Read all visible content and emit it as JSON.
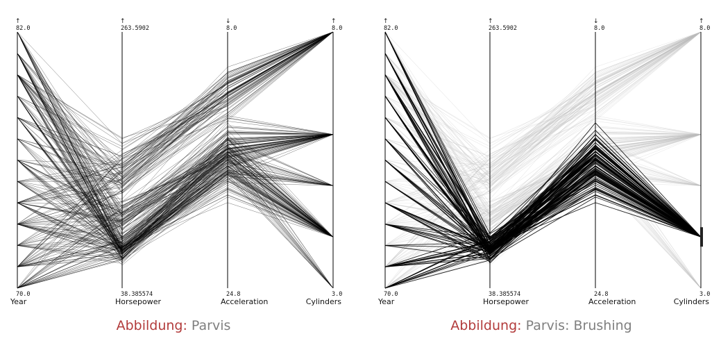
{
  "chart_data": [
    {
      "type": "parallel_coordinates",
      "caption_prefix": "Abbildung:",
      "caption_text": "Parvis",
      "brushed": false,
      "axes": [
        {
          "name": "Year",
          "max": "82.0",
          "min": "70.0",
          "direction": "↑"
        },
        {
          "name": "Horsepower",
          "max": "263.5902",
          "min": "38.385574",
          "direction": "↑"
        },
        {
          "name": "Acceleration",
          "max": "8.0",
          "min": "24.8",
          "direction": "↓"
        },
        {
          "name": "Cylinders",
          "max": "8.0",
          "min": "3.0",
          "direction": "↑"
        }
      ]
    },
    {
      "type": "parallel_coordinates",
      "caption_prefix": "Abbildung:",
      "caption_text": "Parvis: Brushing",
      "brushed": true,
      "brush_axis": "Cylinders",
      "brush_value": 4,
      "axes": [
        {
          "name": "Year",
          "max": "82.0",
          "min": "70.0",
          "direction": "↑"
        },
        {
          "name": "Horsepower",
          "max": "263.5902",
          "min": "38.385574",
          "direction": "↑"
        },
        {
          "name": "Acceleration",
          "max": "8.0",
          "min": "24.8",
          "direction": "↓"
        },
        {
          "name": "Cylinders",
          "max": "8.0",
          "min": "3.0",
          "direction": "↑"
        }
      ]
    }
  ]
}
